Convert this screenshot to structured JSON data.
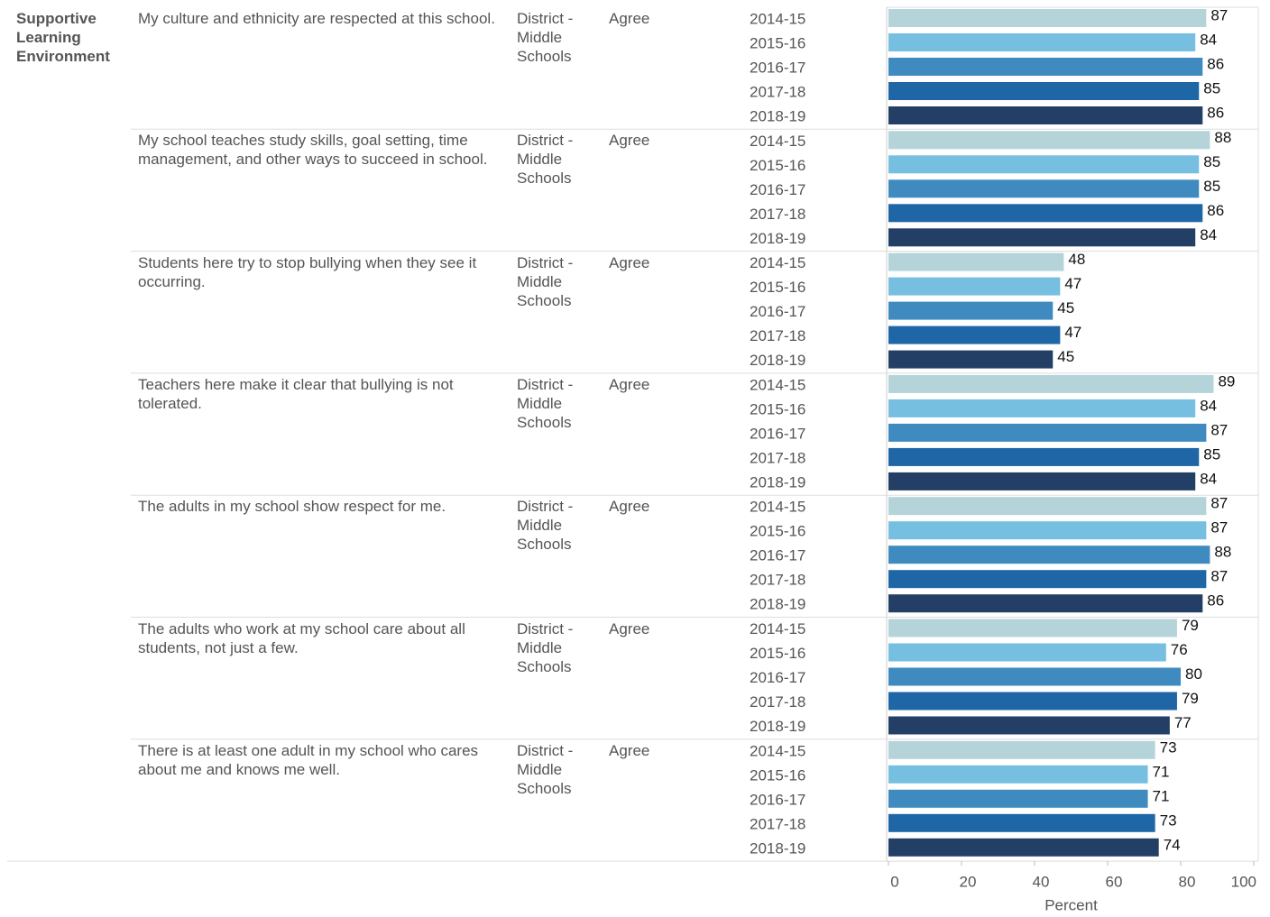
{
  "chart_data": {
    "type": "bar",
    "section": "Supportive Learning Environment",
    "years": [
      "2014-15",
      "2015-16",
      "2016-17",
      "2017-18",
      "2018-19"
    ],
    "colors": [
      "#b5d4da",
      "#76bfe0",
      "#3f8bbf",
      "#1f66a6",
      "#243f66"
    ],
    "rows": [
      {
        "question": "My culture and ethnicity are respected at this school.",
        "group": "District - Middle Schools",
        "response": "Agree",
        "values": [
          87,
          84,
          86,
          85,
          86
        ]
      },
      {
        "question": "My school teaches study skills, goal setting, time management, and other ways to succeed in school.",
        "group": "District - Middle Schools",
        "response": "Agree",
        "values": [
          88,
          85,
          85,
          86,
          84
        ]
      },
      {
        "question": "Students here try to stop bullying when they see it occurring.",
        "group": "District - Middle Schools",
        "response": "Agree",
        "values": [
          48,
          47,
          45,
          47,
          45
        ]
      },
      {
        "question": "Teachers here make it clear that bullying is not tolerated.",
        "group": "District - Middle Schools",
        "response": "Agree",
        "values": [
          89,
          84,
          87,
          85,
          84
        ]
      },
      {
        "question": "The adults in my school show respect for me.",
        "group": "District - Middle Schools",
        "response": "Agree",
        "values": [
          87,
          87,
          88,
          87,
          86
        ]
      },
      {
        "question": "The adults who work at my school care about all students, not just a few.",
        "group": "District - Middle Schools",
        "response": "Agree",
        "values": [
          79,
          76,
          80,
          79,
          77
        ]
      },
      {
        "question": "There is at least one adult in my school who cares about me and knows me well.",
        "group": "District - Middle Schools",
        "response": "Agree",
        "values": [
          73,
          71,
          71,
          73,
          74
        ]
      }
    ],
    "xlim": [
      0,
      100
    ],
    "xticks": [
      0,
      20,
      40,
      60,
      80,
      100
    ],
    "xlabel": "Percent"
  }
}
